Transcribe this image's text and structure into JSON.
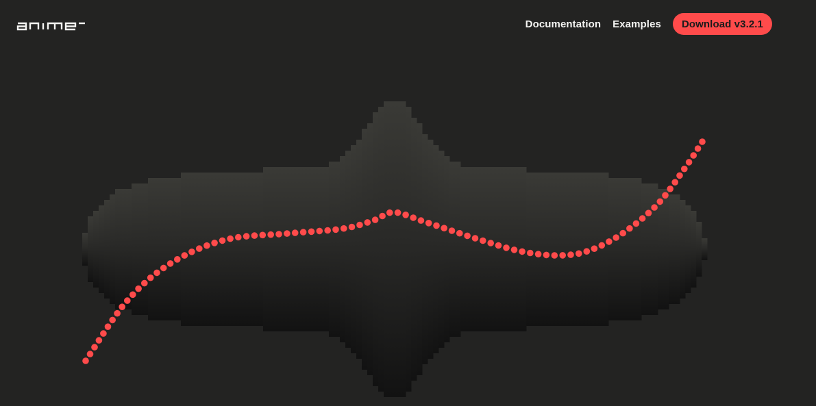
{
  "header": {
    "logo_text": "anime",
    "nav": [
      {
        "label": "Documentation"
      },
      {
        "label": "Examples"
      }
    ],
    "download_label": "Download v3.2.1"
  },
  "colors": {
    "background": "#232322",
    "accent": "#ff4b4b",
    "nav_text": "#f4f4f2"
  },
  "hero": {
    "visual": "pixelated-blob-with-dotted-wave",
    "dot_count": 90
  }
}
